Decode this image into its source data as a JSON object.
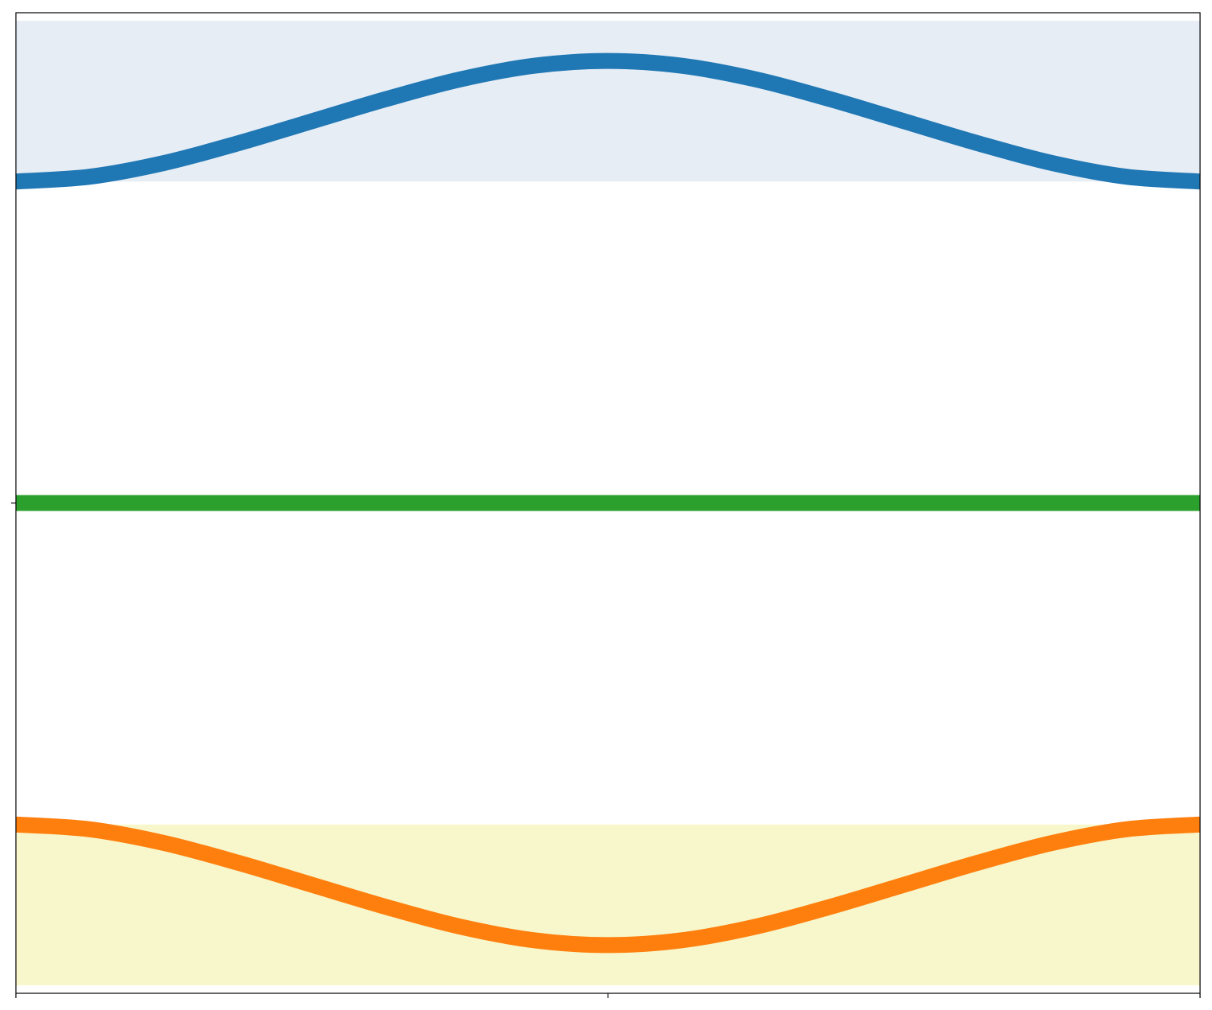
{
  "chart_data": {
    "type": "line",
    "title": "",
    "xlabel": "",
    "ylabel": "",
    "xlim": [
      0,
      1
    ],
    "ylim": [
      -1.22,
      1.22
    ],
    "xticks": [
      0,
      0.5,
      1
    ],
    "yticks": [
      0
    ],
    "grid": false,
    "bands": [
      {
        "y_min": 0.8,
        "y_max": 1.2,
        "color": "#e6edf5"
      },
      {
        "y_min": -1.2,
        "y_max": -0.8,
        "color": "#f8f7cc"
      }
    ],
    "series": [
      {
        "color": "#1f77b4",
        "x": [
          0,
          0.0625,
          0.125,
          0.1875,
          0.25,
          0.3125,
          0.375,
          0.4375,
          0.5,
          0.5625,
          0.625,
          0.6875,
          0.75,
          0.8125,
          0.875,
          0.9375,
          1
        ],
        "y": [
          0.8,
          0.812,
          0.846,
          0.895,
          0.95,
          1.005,
          1.054,
          1.088,
          1.1,
          1.088,
          1.054,
          1.005,
          0.95,
          0.895,
          0.846,
          0.812,
          0.8
        ]
      },
      {
        "color": "#ff7f0e",
        "x": [
          0,
          0.0625,
          0.125,
          0.1875,
          0.25,
          0.3125,
          0.375,
          0.4375,
          0.5,
          0.5625,
          0.625,
          0.6875,
          0.75,
          0.8125,
          0.875,
          0.9375,
          1
        ],
        "y": [
          -0.8,
          -0.812,
          -0.846,
          -0.895,
          -0.95,
          -1.005,
          -1.054,
          -1.088,
          -1.1,
          -1.088,
          -1.054,
          -1.005,
          -0.95,
          -0.895,
          -0.846,
          -0.812,
          -0.8
        ]
      },
      {
        "color": "#2ca02c",
        "x": [
          0,
          1
        ],
        "y": [
          0,
          0
        ]
      }
    ]
  }
}
